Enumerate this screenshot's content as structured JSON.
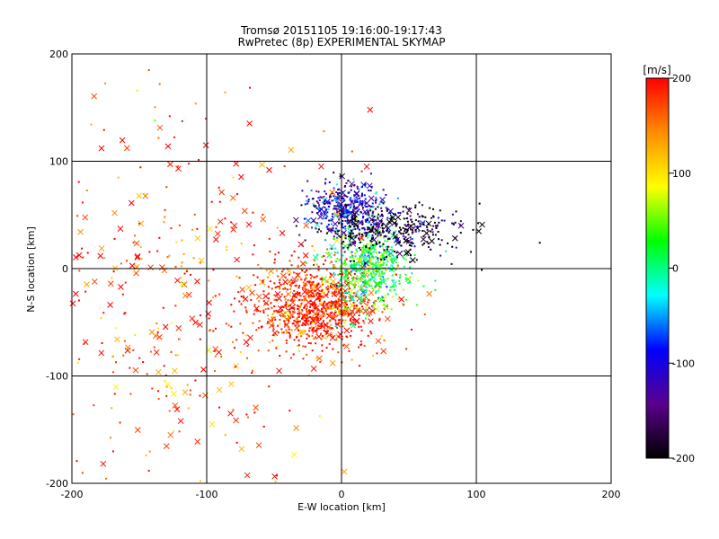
{
  "chart_data": {
    "type": "scatter",
    "title": "Tromsø 20151105 19:16:00-19:17:43",
    "subtitle": "RwPretec (8p) EXPERIMENTAL SKYMAP",
    "xlabel": "E-W location [km]",
    "ylabel": "N-S location [km]",
    "xlim": [
      -200,
      200
    ],
    "ylim": [
      -200,
      200
    ],
    "xticks": [
      "-200",
      "-100",
      "0",
      "100",
      "200"
    ],
    "yticks": [
      "-200",
      "-100",
      "0",
      "100",
      "200"
    ],
    "grid_lines": [
      -100,
      0,
      100
    ],
    "grid": true,
    "marker_types": [
      "dot",
      "cross"
    ],
    "colorbar": {
      "unit": "[m/s]",
      "range": [
        -200,
        200
      ],
      "ticks": [
        "200",
        "100",
        "0",
        "-100",
        "-200"
      ],
      "colormap": [
        "#000000",
        "#5a008c",
        "#0000ff",
        "#00ffff",
        "#00ff00",
        "#ffff00",
        "#ff8c00",
        "#ff0000"
      ]
    },
    "clusters": [
      {
        "name": "red-southwest",
        "center": [
          -20,
          -35
        ],
        "spread": [
          25,
          20
        ],
        "velocity": 190
      },
      {
        "name": "green-center",
        "center": [
          20,
          0
        ],
        "spread": [
          15,
          20
        ],
        "velocity": 20
      },
      {
        "name": "blue-north",
        "center": [
          5,
          55
        ],
        "spread": [
          15,
          12
        ],
        "velocity": -110
      },
      {
        "name": "black-northeast",
        "center": [
          40,
          35
        ],
        "spread": [
          25,
          12
        ],
        "velocity": -200
      },
      {
        "name": "scattered-west",
        "center": [
          -130,
          -30
        ],
        "spread": [
          60,
          90
        ],
        "velocity": 180
      }
    ]
  }
}
